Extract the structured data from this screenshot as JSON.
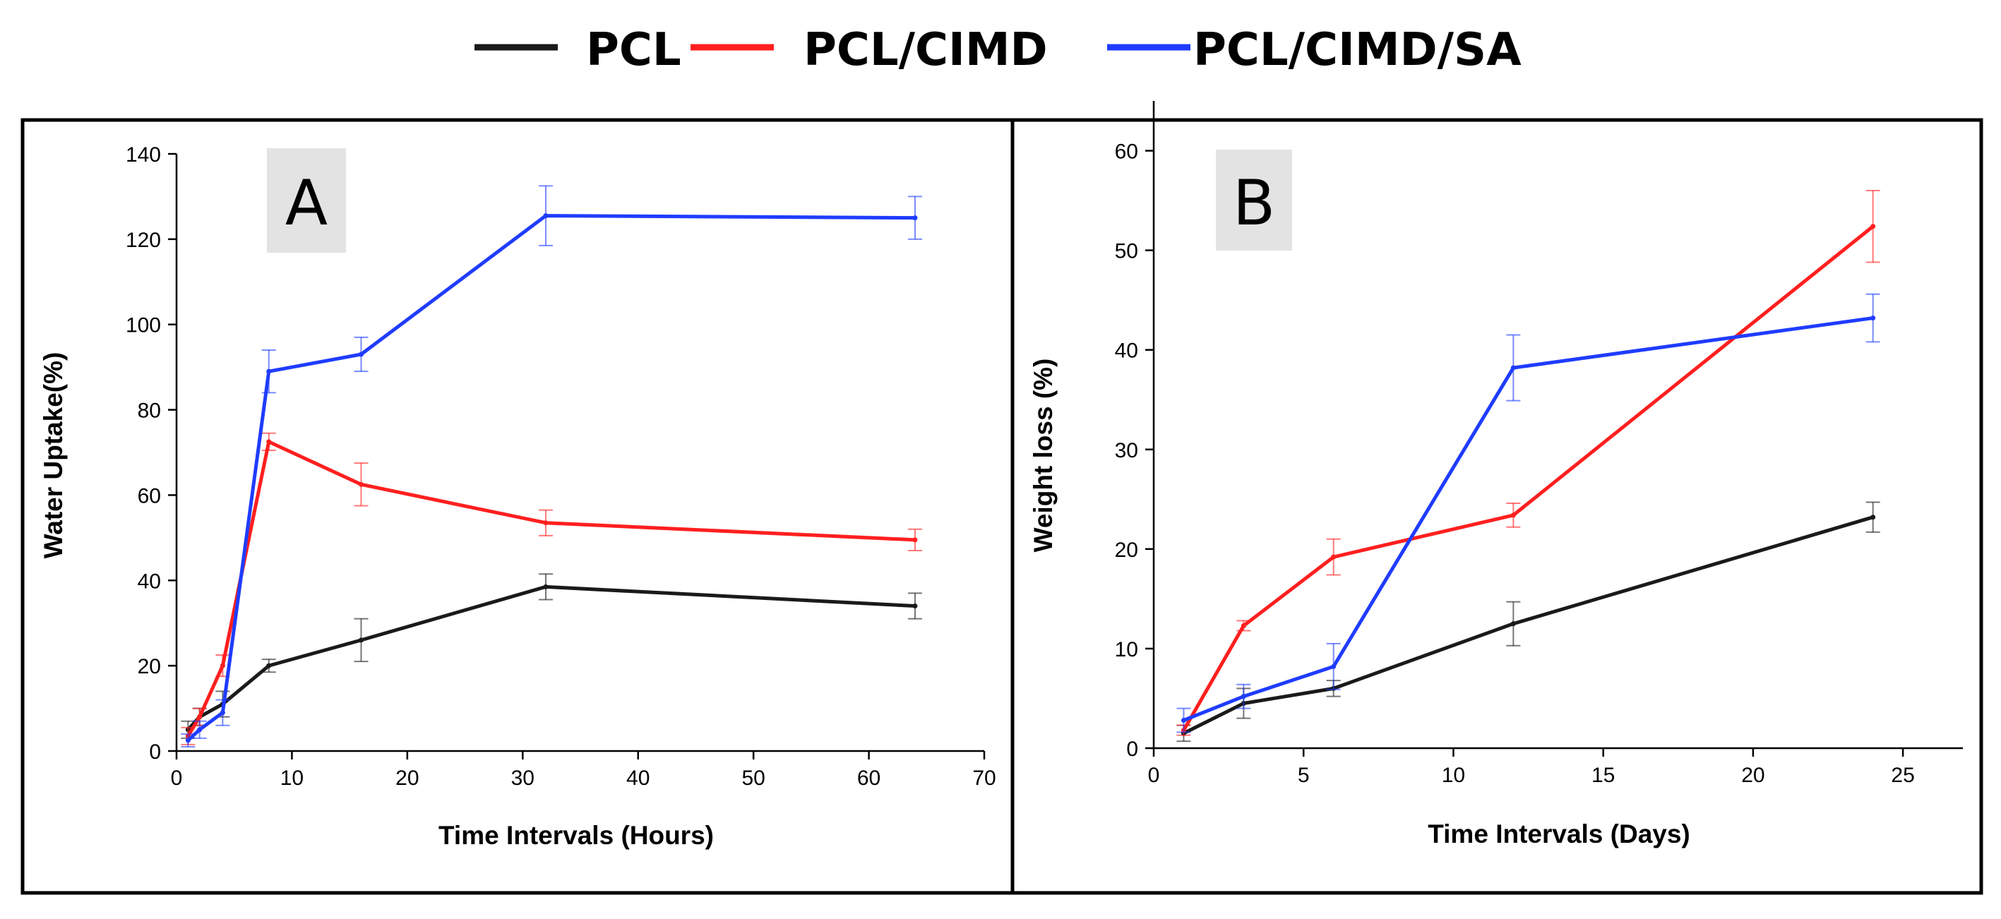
{
  "legend": [
    {
      "name": "PCL",
      "color": "#1a1a1a"
    },
    {
      "name": "PCL/CIMD",
      "color": "#ff1f1f"
    },
    {
      "name": "PCL/CIMD/SA",
      "color": "#1f3cff"
    }
  ],
  "chart_data": [
    {
      "type": "line",
      "panel_label": "A",
      "xlabel": "Time Intervals (Hours)",
      "ylabel": "Water Uptake(%)",
      "xlim": [
        0,
        70
      ],
      "ylim": [
        0,
        140
      ],
      "xticks": [
        0,
        10,
        20,
        30,
        40,
        50,
        60,
        70
      ],
      "yticks": [
        0,
        20,
        40,
        60,
        80,
        100,
        120,
        140
      ],
      "x": [
        1,
        2,
        4,
        8,
        16,
        32,
        64
      ],
      "series": [
        {
          "name": "PCL",
          "color": "#1a1a1a",
          "values": [
            5,
            8,
            11,
            20,
            26,
            38.5,
            34
          ],
          "errors": [
            2,
            2,
            3,
            1.5,
            5,
            3,
            3
          ]
        },
        {
          "name": "PCL/CIMD",
          "color": "#ff1f1f",
          "values": [
            3.5,
            8,
            20,
            72.5,
            62.5,
            53.5,
            49.5
          ],
          "errors": [
            2,
            2,
            2.5,
            2,
            5,
            3,
            2.5
          ]
        },
        {
          "name": "PCL/CIMD/SA",
          "color": "#1f3cff",
          "values": [
            2.5,
            5,
            9,
            89,
            93,
            125.5,
            125
          ],
          "errors": [
            1.5,
            2,
            3,
            5,
            4,
            7,
            5
          ]
        }
      ]
    },
    {
      "type": "line",
      "panel_label": "B",
      "xlabel": "Time Intervals (Days)",
      "ylabel": "Weight loss (%)",
      "xlim": [
        0,
        27
      ],
      "ylim": [
        0,
        65
      ],
      "xticks": [
        0,
        5,
        10,
        15,
        20,
        25
      ],
      "yticks": [
        0,
        10,
        20,
        30,
        40,
        50,
        60
      ],
      "x": [
        1,
        3,
        6,
        12,
        24
      ],
      "series": [
        {
          "name": "PCL",
          "color": "#1a1a1a",
          "values": [
            1.5,
            4.5,
            6,
            12.5,
            23.2
          ],
          "errors": [
            0.8,
            1.5,
            0.8,
            2.2,
            1.5
          ]
        },
        {
          "name": "PCL/CIMD",
          "color": "#ff1f1f",
          "values": [
            1.8,
            12.3,
            19.2,
            23.4,
            52.4
          ],
          "errors": [
            0.5,
            0.5,
            1.8,
            1.2,
            3.6
          ]
        },
        {
          "name": "PCL/CIMD/SA",
          "color": "#1f3cff",
          "values": [
            2.8,
            5.2,
            8.2,
            38.2,
            43.2
          ],
          "errors": [
            1.2,
            1.2,
            2.3,
            3.3,
            2.4
          ]
        }
      ]
    }
  ]
}
